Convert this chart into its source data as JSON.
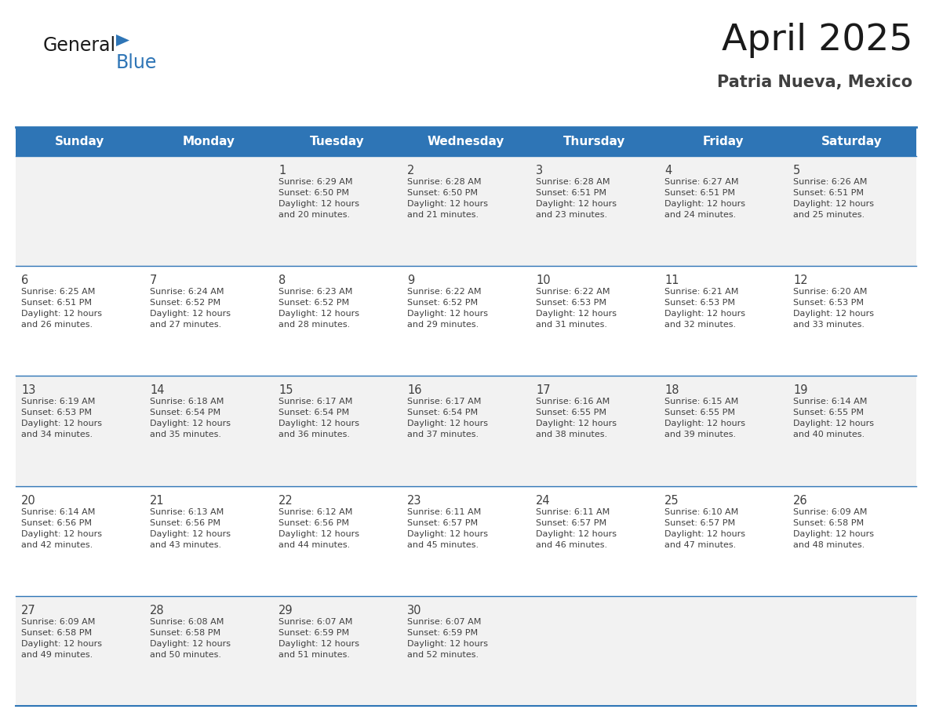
{
  "title": "April 2025",
  "subtitle": "Patria Nueva, Mexico",
  "header_bg_color": "#2E75B6",
  "header_text_color": "#FFFFFF",
  "day_names": [
    "Sunday",
    "Monday",
    "Tuesday",
    "Wednesday",
    "Thursday",
    "Friday",
    "Saturday"
  ],
  "row_bg_colors": [
    "#F2F2F2",
    "#FFFFFF",
    "#F2F2F2",
    "#FFFFFF",
    "#F2F2F2"
  ],
  "text_color": "#404040",
  "line_color": "#2E75B6",
  "title_color": "#1a1a1a",
  "subtitle_color": "#404040",
  "logo_color_general": "#1a1a1a",
  "logo_color_blue": "#2E75B6",
  "logo_triangle_color": "#2E75B6",
  "calendar_data": [
    [
      {
        "day": null,
        "sunrise": null,
        "sunset": null,
        "daylight_hours": null,
        "daylight_minutes": null
      },
      {
        "day": null,
        "sunrise": null,
        "sunset": null,
        "daylight_hours": null,
        "daylight_minutes": null
      },
      {
        "day": 1,
        "sunrise": "6:29 AM",
        "sunset": "6:50 PM",
        "daylight_hours": 12,
        "daylight_minutes": 20
      },
      {
        "day": 2,
        "sunrise": "6:28 AM",
        "sunset": "6:50 PM",
        "daylight_hours": 12,
        "daylight_minutes": 21
      },
      {
        "day": 3,
        "sunrise": "6:28 AM",
        "sunset": "6:51 PM",
        "daylight_hours": 12,
        "daylight_minutes": 23
      },
      {
        "day": 4,
        "sunrise": "6:27 AM",
        "sunset": "6:51 PM",
        "daylight_hours": 12,
        "daylight_minutes": 24
      },
      {
        "day": 5,
        "sunrise": "6:26 AM",
        "sunset": "6:51 PM",
        "daylight_hours": 12,
        "daylight_minutes": 25
      }
    ],
    [
      {
        "day": 6,
        "sunrise": "6:25 AM",
        "sunset": "6:51 PM",
        "daylight_hours": 12,
        "daylight_minutes": 26
      },
      {
        "day": 7,
        "sunrise": "6:24 AM",
        "sunset": "6:52 PM",
        "daylight_hours": 12,
        "daylight_minutes": 27
      },
      {
        "day": 8,
        "sunrise": "6:23 AM",
        "sunset": "6:52 PM",
        "daylight_hours": 12,
        "daylight_minutes": 28
      },
      {
        "day": 9,
        "sunrise": "6:22 AM",
        "sunset": "6:52 PM",
        "daylight_hours": 12,
        "daylight_minutes": 29
      },
      {
        "day": 10,
        "sunrise": "6:22 AM",
        "sunset": "6:53 PM",
        "daylight_hours": 12,
        "daylight_minutes": 31
      },
      {
        "day": 11,
        "sunrise": "6:21 AM",
        "sunset": "6:53 PM",
        "daylight_hours": 12,
        "daylight_minutes": 32
      },
      {
        "day": 12,
        "sunrise": "6:20 AM",
        "sunset": "6:53 PM",
        "daylight_hours": 12,
        "daylight_minutes": 33
      }
    ],
    [
      {
        "day": 13,
        "sunrise": "6:19 AM",
        "sunset": "6:53 PM",
        "daylight_hours": 12,
        "daylight_minutes": 34
      },
      {
        "day": 14,
        "sunrise": "6:18 AM",
        "sunset": "6:54 PM",
        "daylight_hours": 12,
        "daylight_minutes": 35
      },
      {
        "day": 15,
        "sunrise": "6:17 AM",
        "sunset": "6:54 PM",
        "daylight_hours": 12,
        "daylight_minutes": 36
      },
      {
        "day": 16,
        "sunrise": "6:17 AM",
        "sunset": "6:54 PM",
        "daylight_hours": 12,
        "daylight_minutes": 37
      },
      {
        "day": 17,
        "sunrise": "6:16 AM",
        "sunset": "6:55 PM",
        "daylight_hours": 12,
        "daylight_minutes": 38
      },
      {
        "day": 18,
        "sunrise": "6:15 AM",
        "sunset": "6:55 PM",
        "daylight_hours": 12,
        "daylight_minutes": 39
      },
      {
        "day": 19,
        "sunrise": "6:14 AM",
        "sunset": "6:55 PM",
        "daylight_hours": 12,
        "daylight_minutes": 40
      }
    ],
    [
      {
        "day": 20,
        "sunrise": "6:14 AM",
        "sunset": "6:56 PM",
        "daylight_hours": 12,
        "daylight_minutes": 42
      },
      {
        "day": 21,
        "sunrise": "6:13 AM",
        "sunset": "6:56 PM",
        "daylight_hours": 12,
        "daylight_minutes": 43
      },
      {
        "day": 22,
        "sunrise": "6:12 AM",
        "sunset": "6:56 PM",
        "daylight_hours": 12,
        "daylight_minutes": 44
      },
      {
        "day": 23,
        "sunrise": "6:11 AM",
        "sunset": "6:57 PM",
        "daylight_hours": 12,
        "daylight_minutes": 45
      },
      {
        "day": 24,
        "sunrise": "6:11 AM",
        "sunset": "6:57 PM",
        "daylight_hours": 12,
        "daylight_minutes": 46
      },
      {
        "day": 25,
        "sunrise": "6:10 AM",
        "sunset": "6:57 PM",
        "daylight_hours": 12,
        "daylight_minutes": 47
      },
      {
        "day": 26,
        "sunrise": "6:09 AM",
        "sunset": "6:58 PM",
        "daylight_hours": 12,
        "daylight_minutes": 48
      }
    ],
    [
      {
        "day": 27,
        "sunrise": "6:09 AM",
        "sunset": "6:58 PM",
        "daylight_hours": 12,
        "daylight_minutes": 49
      },
      {
        "day": 28,
        "sunrise": "6:08 AM",
        "sunset": "6:58 PM",
        "daylight_hours": 12,
        "daylight_minutes": 50
      },
      {
        "day": 29,
        "sunrise": "6:07 AM",
        "sunset": "6:59 PM",
        "daylight_hours": 12,
        "daylight_minutes": 51
      },
      {
        "day": 30,
        "sunrise": "6:07 AM",
        "sunset": "6:59 PM",
        "daylight_hours": 12,
        "daylight_minutes": 52
      },
      {
        "day": null,
        "sunrise": null,
        "sunset": null,
        "daylight_hours": null,
        "daylight_minutes": null
      },
      {
        "day": null,
        "sunrise": null,
        "sunset": null,
        "daylight_hours": null,
        "daylight_minutes": null
      },
      {
        "day": null,
        "sunrise": null,
        "sunset": null,
        "daylight_hours": null,
        "daylight_minutes": null
      }
    ]
  ]
}
